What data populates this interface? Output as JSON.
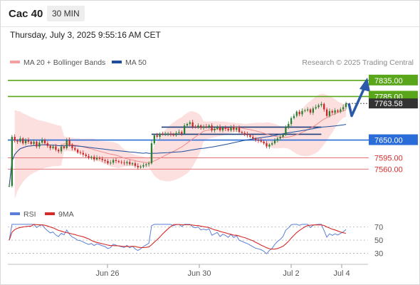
{
  "header": {
    "symbol": "Cac 40",
    "interval": "30 MIN"
  },
  "timestamp": "Thursday, July 3, 2025 9:55:16 AM CET",
  "legend": {
    "bollinger": "MA 20 + Bollinger Bands",
    "ma50": "MA 50",
    "copyright": "Research © 2025 Trading Central"
  },
  "rsi_legend": {
    "rsi": "RSI",
    "ma9": "9MA"
  },
  "colors": {
    "bull_candle": "#2e7d32",
    "bear_candle": "#c62828",
    "bollinger_band": "#fbd6d6",
    "ma20": "#f08a8a",
    "ma50": "#1f4e9c",
    "resistance": "#5aa61a",
    "pivot": "#2a6dd8",
    "support": "#e57373",
    "price_tag": "#333333",
    "rsi_line": "#5b7fd6",
    "rsi_ma": "#d42a2a",
    "forecast_arrow": "#2a5aa8"
  },
  "chart_data": [
    {
      "type": "candlestick",
      "title": "Cac 40",
      "interval": "30 MIN",
      "x_ticks": [
        "Jun 26",
        "Jun 30",
        "Jul 2",
        "Jul 4"
      ],
      "y_range": [
        7490,
        7870
      ],
      "grid": false,
      "legend_position": "top-left",
      "current_price": 7763.58,
      "levels": [
        {
          "value": 7835.0,
          "label": "7835.00",
          "kind": "resistance"
        },
        {
          "value": 7785.0,
          "label": "7785.00",
          "kind": "resistance"
        },
        {
          "value": 7650.0,
          "label": "7650.00",
          "kind": "pivot"
        },
        {
          "value": 7595.0,
          "label": "7595.00",
          "kind": "support"
        },
        {
          "value": 7560.0,
          "label": "7560.00",
          "kind": "support"
        }
      ],
      "current_label": "7763.58",
      "series": [
        {
          "name": "MA 20 + Bollinger Bands"
        },
        {
          "name": "MA 50"
        }
      ],
      "close": [
        7508,
        7660,
        7648,
        7645,
        7655,
        7640,
        7650,
        7645,
        7638,
        7645,
        7630,
        7642,
        7650,
        7640,
        7632,
        7625,
        7630,
        7620,
        7615,
        7630,
        7625,
        7650,
        7635,
        7625,
        7620,
        7612,
        7610,
        7605,
        7600,
        7595,
        7598,
        7590,
        7595,
        7592,
        7588,
        7585,
        7578,
        7580,
        7588,
        7585,
        7582,
        7580,
        7578,
        7582,
        7575,
        7578,
        7570,
        7565,
        7568,
        7572,
        7575,
        7578,
        7640,
        7665,
        7660,
        7670,
        7668,
        7668,
        7670,
        7668,
        7665,
        7672,
        7675,
        7670,
        7695,
        7700,
        7705,
        7692,
        7690,
        7695,
        7688,
        7692,
        7690,
        7695,
        7680,
        7685,
        7690,
        7680,
        7688,
        7685,
        7680,
        7690,
        7682,
        7688,
        7675,
        7672,
        7668,
        7665,
        7660,
        7655,
        7650,
        7648,
        7645,
        7640,
        7630,
        7636,
        7640,
        7648,
        7655,
        7660,
        7668,
        7690,
        7700,
        7718,
        7725,
        7738,
        7730,
        7740,
        7742,
        7745,
        7735,
        7748,
        7752,
        7758,
        7762,
        7745,
        7725,
        7740,
        7735,
        7742,
        7738,
        7745,
        7752,
        7763.58
      ],
      "forecast_path": [
        7763.58,
        7725,
        7835
      ]
    },
    {
      "type": "line",
      "title": "",
      "y_ticks": [
        30,
        50,
        70
      ],
      "y_range": [
        22,
        76
      ],
      "legend_position": "top-left",
      "series": [
        {
          "name": "RSI"
        },
        {
          "name": "9MA"
        }
      ]
    }
  ]
}
